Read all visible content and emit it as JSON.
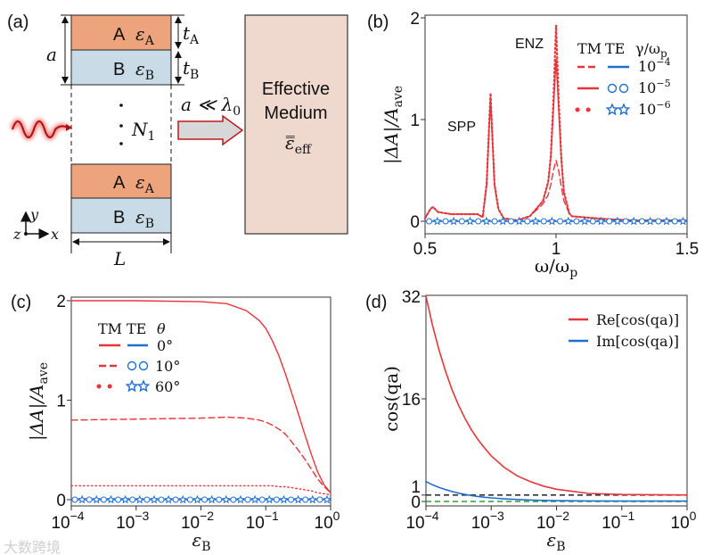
{
  "colors": {
    "red": "#e8353a",
    "blue": "#1f6fd1",
    "black": "#333333",
    "green": "#2ca02c",
    "layerA": "#eda47d",
    "layerB": "#c8dbe7",
    "medium": "#efd9cf"
  },
  "panel_a": {
    "label": "(a)",
    "period": "a",
    "layer_a_name": "A",
    "layer_a_eps": "ε",
    "layer_a_sub": "A",
    "layer_b_name": "B",
    "layer_b_eps": "ε",
    "layer_b_sub": "B",
    "t_a": "t",
    "t_a_sub": "A",
    "t_b": "t",
    "t_b_sub": "B",
    "repeat": "N",
    "repeat_sub": "1",
    "width": "L",
    "axis_x": "x",
    "axis_y": "y",
    "axis_z": "z",
    "condition": "a ≪ λ",
    "condition_sub": "0",
    "medium_line1": "Effective",
    "medium_line2": "Medium",
    "medium_eps": "ε̿",
    "medium_eps_sub": "eff"
  },
  "watermark": "大数跨境",
  "chart_data": [
    {
      "panel": "(b)",
      "type": "line",
      "xlabel": "ω/ω",
      "xlabel_sub": "p",
      "ylabel": "|ΔA|/A",
      "ylabel_sub": "ave",
      "xlim": [
        0.5,
        1.5
      ],
      "ylim": [
        0,
        2
      ],
      "xticks": [
        "0.5",
        "1",
        "1.5"
      ],
      "xtick_values": [
        0.5,
        1,
        1.5
      ],
      "yticks": [
        "0",
        "1",
        "2"
      ],
      "ytick_values": [
        0,
        1,
        2
      ],
      "annotations": [
        {
          "text": "ENZ",
          "x": 0.87,
          "y": 1.85
        },
        {
          "text": "SPP",
          "x": 0.6,
          "y": 1.0
        }
      ],
      "legend": {
        "col_tm": "TM",
        "col_te": "TE",
        "col_param": "γ/ω",
        "col_param_sub": "p",
        "rows": [
          {
            "base": "10",
            "exp": "−4"
          },
          {
            "base": "10",
            "exp": "−5"
          },
          {
            "base": "10",
            "exp": "−6"
          }
        ],
        "placement": "top-right"
      },
      "x": [
        0.5,
        0.52,
        0.53,
        0.55,
        0.6,
        0.7,
        0.72,
        0.735,
        0.745,
        0.75,
        0.755,
        0.765,
        0.78,
        0.8,
        0.85,
        0.9,
        0.95,
        0.97,
        0.98,
        0.99,
        1.0,
        1.01,
        1.02,
        1.03,
        1.05,
        1.06,
        1.1,
        1.2,
        1.3,
        1.4,
        1.5
      ],
      "series": [
        {
          "name": "TM γ/ωp=1e-4",
          "style": "dashed",
          "values": [
            0.03,
            0.12,
            0.14,
            0.09,
            0.07,
            0.07,
            0.04,
            0.35,
            0.9,
            1.18,
            0.9,
            0.35,
            0.12,
            0.03,
            0.01,
            0.05,
            0.17,
            0.26,
            0.36,
            0.5,
            0.6,
            0.5,
            0.34,
            0.2,
            0.08,
            0.05,
            0.04,
            0.02,
            0.01,
            0.01,
            0.01
          ]
        },
        {
          "name": "TM γ/ωp=1e-5",
          "style": "solid",
          "values": [
            0.03,
            0.12,
            0.14,
            0.09,
            0.07,
            0.07,
            0.04,
            0.36,
            0.95,
            1.22,
            0.92,
            0.36,
            0.12,
            0.03,
            0.01,
            0.05,
            0.2,
            0.38,
            0.62,
            1.1,
            1.6,
            1.1,
            0.6,
            0.28,
            0.08,
            0.05,
            0.04,
            0.02,
            0.01,
            0.01,
            0.01
          ]
        },
        {
          "name": "TM γ/ωp=1e-6",
          "style": "dotted",
          "values": [
            0.03,
            0.12,
            0.14,
            0.09,
            0.07,
            0.07,
            0.04,
            0.37,
            0.97,
            1.26,
            0.94,
            0.37,
            0.12,
            0.03,
            0.01,
            0.05,
            0.2,
            0.39,
            0.64,
            1.2,
            1.93,
            1.2,
            0.62,
            0.29,
            0.08,
            0.05,
            0.04,
            0.02,
            0.01,
            0.01,
            0.01
          ]
        },
        {
          "name": "TE (all γ)",
          "style": "blue-markers",
          "values": [
            0,
            0,
            0,
            0,
            0,
            0,
            0,
            0,
            0,
            0,
            0,
            0,
            0,
            0,
            0,
            0,
            0,
            0,
            0,
            0,
            0,
            0,
            0,
            0,
            0,
            0,
            0,
            0,
            0,
            0,
            0
          ]
        }
      ]
    },
    {
      "panel": "(c)",
      "type": "line",
      "xlabel": "ε",
      "xlabel_sub": "B",
      "ylabel": "|ΔA|/A",
      "ylabel_sub": "ave",
      "xscale": "log",
      "xlim": [
        -4,
        0
      ],
      "ylim": [
        0,
        2
      ],
      "xticks": [
        {
          "base": "10",
          "exp": "−4"
        },
        {
          "base": "10",
          "exp": "−3"
        },
        {
          "base": "10",
          "exp": "−2"
        },
        {
          "base": "10",
          "exp": "−1"
        },
        {
          "base": "10",
          "exp": "0"
        }
      ],
      "xtick_values": [
        -4,
        -3,
        -2,
        -1,
        0
      ],
      "yticks": [
        "0",
        "1",
        "2"
      ],
      "ytick_values": [
        0,
        1,
        2
      ],
      "legend": {
        "col_tm": "TM",
        "col_te": "TE",
        "col_param": "θ",
        "rows": [
          "0°",
          "10°",
          "60°"
        ],
        "placement": "top-left"
      },
      "log10_x": [
        -4,
        -3,
        -2,
        -1.6,
        -1.3,
        -1.1,
        -1,
        -0.9,
        -0.8,
        -0.7,
        -0.6,
        -0.5,
        -0.4,
        -0.3,
        -0.2,
        -0.1,
        0
      ],
      "series": [
        {
          "name": "TM θ=0°",
          "style": "solid",
          "values": [
            2,
            2,
            1.99,
            1.97,
            1.9,
            1.8,
            1.72,
            1.6,
            1.45,
            1.27,
            1.07,
            0.87,
            0.66,
            0.46,
            0.28,
            0.15,
            0.07
          ]
        },
        {
          "name": "TM θ=10°",
          "style": "dashed",
          "values": [
            0.8,
            0.81,
            0.82,
            0.83,
            0.82,
            0.8,
            0.78,
            0.75,
            0.71,
            0.66,
            0.58,
            0.5,
            0.41,
            0.31,
            0.21,
            0.13,
            0.07
          ]
        },
        {
          "name": "TM θ=60°",
          "style": "dotted",
          "values": [
            0.14,
            0.14,
            0.14,
            0.14,
            0.14,
            0.14,
            0.14,
            0.14,
            0.13,
            0.13,
            0.12,
            0.11,
            0.1,
            0.09,
            0.07,
            0.06,
            0.05
          ]
        },
        {
          "name": "TE (all θ)",
          "style": "blue-markers",
          "values": [
            0,
            0,
            0,
            0,
            0,
            0,
            0,
            0,
            0,
            0,
            0,
            0,
            0,
            0,
            0,
            0,
            0
          ]
        }
      ]
    },
    {
      "panel": "(d)",
      "type": "line",
      "xlabel": "ε",
      "xlabel_sub": "B",
      "ylabel": "cos(qa)",
      "xscale": "log",
      "xlim": [
        -4,
        0
      ],
      "ylim": [
        0,
        32
      ],
      "xticks": [
        {
          "base": "10",
          "exp": "−4"
        },
        {
          "base": "10",
          "exp": "−3"
        },
        {
          "base": "10",
          "exp": "−2"
        },
        {
          "base": "10",
          "exp": "−1"
        },
        {
          "base": "10",
          "exp": "0"
        }
      ],
      "xtick_values": [
        -4,
        -3,
        -2,
        -1,
        0
      ],
      "yticks": [
        "0",
        "1",
        "16",
        "32"
      ],
      "ytick_values": [
        0,
        1,
        16,
        32
      ],
      "legend": {
        "rows": [
          "Re[cos(qa)]",
          "Im[cos(qa)]"
        ],
        "placement": "top-right"
      },
      "reference_lines": [
        {
          "y": 1,
          "color": "black",
          "style": "dashed"
        },
        {
          "y": 0,
          "color": "green",
          "style": "dashed"
        }
      ],
      "log10_x": [
        -4,
        -3.9,
        -3.8,
        -3.7,
        -3.6,
        -3.5,
        -3.4,
        -3.3,
        -3.2,
        -3.1,
        -3,
        -2.8,
        -2.6,
        -2.4,
        -2.2,
        -2,
        -1.5,
        -1,
        0
      ],
      "series": [
        {
          "name": "Re[cos(qa)]",
          "color": "red",
          "values": [
            32,
            27.5,
            23.6,
            20.3,
            17.4,
            15,
            12.9,
            11.1,
            9.6,
            8.3,
            7.1,
            5.3,
            4,
            3.1,
            2.4,
            1.9,
            1.25,
            1.08,
            1.02
          ]
        },
        {
          "name": "Im[cos(qa)]",
          "color": "blue",
          "values": [
            3.1,
            2.6,
            2.2,
            1.85,
            1.55,
            1.3,
            1.1,
            0.92,
            0.78,
            0.66,
            0.55,
            0.4,
            0.3,
            0.22,
            0.17,
            0.13,
            0.08,
            0.06,
            0.05
          ]
        }
      ]
    }
  ]
}
